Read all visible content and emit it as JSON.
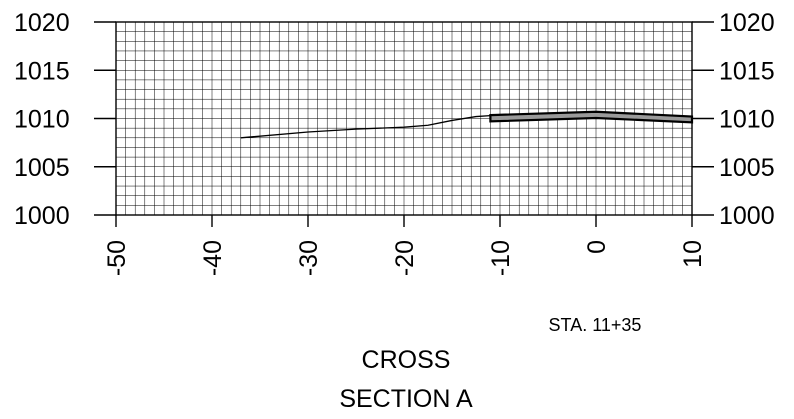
{
  "station_label": "STA. 11+35",
  "title_lines": [
    "CROSS",
    "SECTION A"
  ],
  "colors": {
    "grid": "#000000",
    "pavement_fill": "#9a9a9a",
    "line": "#000000"
  },
  "chart_data": {
    "type": "line",
    "title": "CROSS SECTION A",
    "xlim": [
      -50,
      10
    ],
    "ylim": [
      1000,
      1020
    ],
    "x_ticks": [
      -50,
      -40,
      -30,
      -20,
      -10,
      0,
      10
    ],
    "x_tick_labels": [
      "-50",
      "-40",
      "-30",
      "-20",
      "-10",
      "0",
      "10"
    ],
    "y_ticks": [
      1000,
      1005,
      1010,
      1015,
      1020
    ],
    "y_tick_labels": [
      "1000",
      "1005",
      "1010",
      "1015",
      "1020"
    ],
    "grid": true,
    "series": [
      {
        "kind": "ground-profile",
        "x": [
          -37,
          -30,
          -25,
          -20,
          -17.5,
          -15,
          -12.5,
          -11
        ],
        "y": [
          1008,
          1008.6,
          1008.9,
          1009.1,
          1009.3,
          1009.8,
          1010.2,
          1010.3
        ]
      },
      {
        "kind": "pavement-section",
        "top_x": [
          -11,
          0,
          10
        ],
        "top_y": [
          1010.35,
          1010.7,
          1010.2
        ],
        "bottom_x": [
          -11,
          0,
          10
        ],
        "bottom_y": [
          1009.7,
          1010.05,
          1009.6
        ]
      }
    ]
  }
}
